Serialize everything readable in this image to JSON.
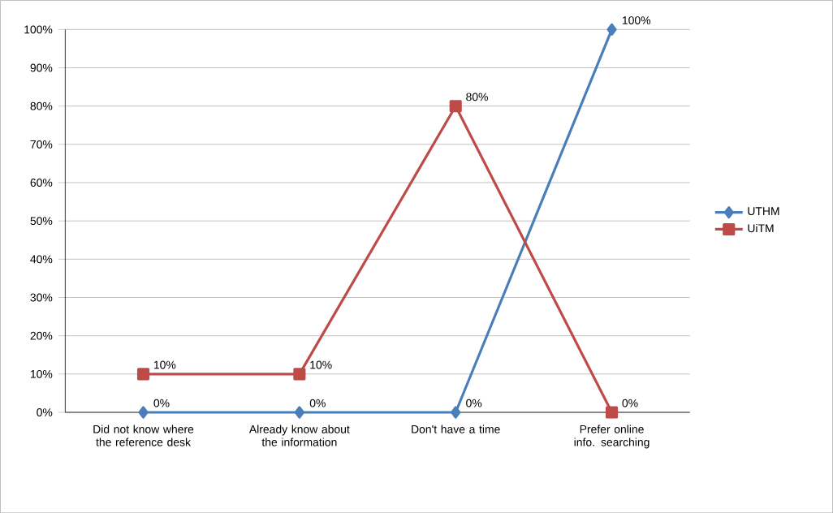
{
  "chart_data": {
    "type": "line",
    "categories": [
      "Did not know where the reference desk",
      "Already know about the information",
      "Don't have a time",
      "Prefer online info. searching"
    ],
    "series": [
      {
        "name": "UTHM",
        "color": "#4a7ebb",
        "marker": "diamond",
        "values": [
          0,
          0,
          0,
          100
        ],
        "value_labels": [
          "0%",
          "0%",
          "0%",
          "100%"
        ]
      },
      {
        "name": "UiTM",
        "color": "#be4b48",
        "marker": "square",
        "values": [
          10,
          10,
          80,
          0
        ],
        "value_labels": [
          "10%",
          "10%",
          "80%",
          "0%"
        ]
      }
    ],
    "ylim": [
      0,
      100
    ],
    "yticks": [
      {
        "value": 0,
        "label": "0%"
      },
      {
        "value": 10,
        "label": "10%"
      },
      {
        "value": 20,
        "label": "20%"
      },
      {
        "value": 30,
        "label": "30%"
      },
      {
        "value": 40,
        "label": "40%"
      },
      {
        "value": 50,
        "label": "50%"
      },
      {
        "value": 60,
        "label": "60%"
      },
      {
        "value": 70,
        "label": "70%"
      },
      {
        "value": 80,
        "label": "80%"
      },
      {
        "value": 90,
        "label": "90%"
      },
      {
        "value": 100,
        "label": "100%"
      }
    ],
    "grid": "y",
    "legend": "right",
    "line_style": "solid"
  }
}
